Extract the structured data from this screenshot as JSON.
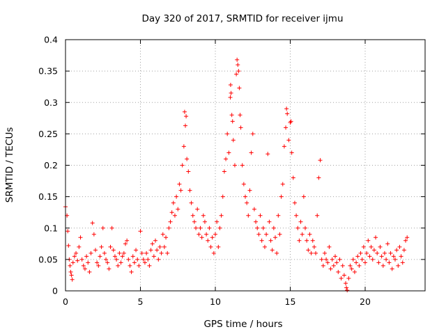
{
  "chart_data": {
    "type": "scatter",
    "title": "Day 320 of 2017, SRMTID for receiver ijmu",
    "xlabel": "GPS time / hours",
    "ylabel": "SRMTID / TECUs",
    "xlim": [
      0,
      24
    ],
    "ylim": [
      0,
      0.4
    ],
    "xticks": [
      0,
      5,
      10,
      15,
      20
    ],
    "xtick_labels": [
      "0",
      "5",
      "10",
      "15",
      "20"
    ],
    "yticks": [
      0,
      0.05,
      0.1,
      0.15,
      0.2,
      0.25,
      0.3,
      0.35,
      0.4
    ],
    "ytick_labels": [
      "0",
      "0.05",
      "0.1",
      "0.15",
      "0.2",
      "0.25",
      "0.3",
      "0.35",
      "0.4"
    ],
    "grid": true,
    "marker": "+",
    "marker_color": "#ff0000",
    "series": [
      {
        "name": "SRMTID",
        "points": [
          [
            0.0,
            0.134
          ],
          [
            0.1,
            0.12
          ],
          [
            0.15,
            0.095
          ],
          [
            0.2,
            0.072
          ],
          [
            0.25,
            0.05
          ],
          [
            0.3,
            0.04
          ],
          [
            0.35,
            0.03
          ],
          [
            0.4,
            0.025
          ],
          [
            0.45,
            0.018
          ],
          [
            0.5,
            0.045
          ],
          [
            0.6,
            0.055
          ],
          [
            0.7,
            0.06
          ],
          [
            0.8,
            0.048
          ],
          [
            0.9,
            0.07
          ],
          [
            1.0,
            0.085
          ],
          [
            1.1,
            0.05
          ],
          [
            1.2,
            0.04
          ],
          [
            1.3,
            0.035
          ],
          [
            1.4,
            0.055
          ],
          [
            1.5,
            0.045
          ],
          [
            1.6,
            0.03
          ],
          [
            1.7,
            0.06
          ],
          [
            1.8,
            0.108
          ],
          [
            1.9,
            0.09
          ],
          [
            2.0,
            0.065
          ],
          [
            2.1,
            0.045
          ],
          [
            2.2,
            0.04
          ],
          [
            2.3,
            0.055
          ],
          [
            2.4,
            0.07
          ],
          [
            2.5,
            0.1
          ],
          [
            2.6,
            0.06
          ],
          [
            2.7,
            0.05
          ],
          [
            2.8,
            0.045
          ],
          [
            2.9,
            0.035
          ],
          [
            3.0,
            0.07
          ],
          [
            3.1,
            0.1
          ],
          [
            3.2,
            0.065
          ],
          [
            3.3,
            0.055
          ],
          [
            3.4,
            0.05
          ],
          [
            3.5,
            0.04
          ],
          [
            3.6,
            0.06
          ],
          [
            3.7,
            0.045
          ],
          [
            3.8,
            0.055
          ],
          [
            3.9,
            0.06
          ],
          [
            4.0,
            0.075
          ],
          [
            4.1,
            0.08
          ],
          [
            4.2,
            0.05
          ],
          [
            4.3,
            0.04
          ],
          [
            4.4,
            0.03
          ],
          [
            4.5,
            0.055
          ],
          [
            4.6,
            0.045
          ],
          [
            4.7,
            0.065
          ],
          [
            4.8,
            0.05
          ],
          [
            4.9,
            0.04
          ],
          [
            5.0,
            0.095
          ],
          [
            5.1,
            0.06
          ],
          [
            5.2,
            0.05
          ],
          [
            5.3,
            0.045
          ],
          [
            5.4,
            0.06
          ],
          [
            5.5,
            0.05
          ],
          [
            5.6,
            0.04
          ],
          [
            5.7,
            0.065
          ],
          [
            5.8,
            0.075
          ],
          [
            5.9,
            0.055
          ],
          [
            6.0,
            0.08
          ],
          [
            6.1,
            0.065
          ],
          [
            6.2,
            0.05
          ],
          [
            6.3,
            0.07
          ],
          [
            6.4,
            0.06
          ],
          [
            6.5,
            0.09
          ],
          [
            6.6,
            0.07
          ],
          [
            6.7,
            0.085
          ],
          [
            6.8,
            0.06
          ],
          [
            6.9,
            0.1
          ],
          [
            7.0,
            0.11
          ],
          [
            7.1,
            0.125
          ],
          [
            7.2,
            0.14
          ],
          [
            7.3,
            0.12
          ],
          [
            7.4,
            0.15
          ],
          [
            7.5,
            0.13
          ],
          [
            7.6,
            0.17
          ],
          [
            7.7,
            0.16
          ],
          [
            7.8,
            0.2
          ],
          [
            7.9,
            0.23
          ],
          [
            7.95,
            0.285
          ],
          [
            8.0,
            0.263
          ],
          [
            8.05,
            0.278
          ],
          [
            8.1,
            0.21
          ],
          [
            8.2,
            0.19
          ],
          [
            8.3,
            0.16
          ],
          [
            8.4,
            0.14
          ],
          [
            8.5,
            0.12
          ],
          [
            8.6,
            0.11
          ],
          [
            8.7,
            0.1
          ],
          [
            8.8,
            0.13
          ],
          [
            8.9,
            0.09
          ],
          [
            9.0,
            0.1
          ],
          [
            9.1,
            0.085
          ],
          [
            9.2,
            0.12
          ],
          [
            9.3,
            0.11
          ],
          [
            9.4,
            0.09
          ],
          [
            9.5,
            0.08
          ],
          [
            9.6,
            0.1
          ],
          [
            9.7,
            0.07
          ],
          [
            9.8,
            0.085
          ],
          [
            9.9,
            0.06
          ],
          [
            10.0,
            0.09
          ],
          [
            10.1,
            0.11
          ],
          [
            10.2,
            0.07
          ],
          [
            10.3,
            0.1
          ],
          [
            10.4,
            0.12
          ],
          [
            10.5,
            0.15
          ],
          [
            10.6,
            0.19
          ],
          [
            10.7,
            0.21
          ],
          [
            10.8,
            0.25
          ],
          [
            10.9,
            0.22
          ],
          [
            11.0,
            0.308
          ],
          [
            11.02,
            0.328
          ],
          [
            11.05,
            0.315
          ],
          [
            11.1,
            0.28
          ],
          [
            11.15,
            0.27
          ],
          [
            11.2,
            0.24
          ],
          [
            11.3,
            0.2
          ],
          [
            11.4,
            0.345
          ],
          [
            11.45,
            0.368
          ],
          [
            11.5,
            0.36
          ],
          [
            11.55,
            0.35
          ],
          [
            11.6,
            0.323
          ],
          [
            11.65,
            0.28
          ],
          [
            11.7,
            0.26
          ],
          [
            11.8,
            0.2
          ],
          [
            11.9,
            0.17
          ],
          [
            12.0,
            0.15
          ],
          [
            12.1,
            0.14
          ],
          [
            12.2,
            0.12
          ],
          [
            12.3,
            0.16
          ],
          [
            12.4,
            0.22
          ],
          [
            12.5,
            0.25
          ],
          [
            12.6,
            0.13
          ],
          [
            12.7,
            0.11
          ],
          [
            12.8,
            0.1
          ],
          [
            12.9,
            0.09
          ],
          [
            13.0,
            0.12
          ],
          [
            13.1,
            0.08
          ],
          [
            13.2,
            0.1
          ],
          [
            13.3,
            0.07
          ],
          [
            13.4,
            0.09
          ],
          [
            13.5,
            0.218
          ],
          [
            13.6,
            0.11
          ],
          [
            13.7,
            0.08
          ],
          [
            13.8,
            0.065
          ],
          [
            13.9,
            0.1
          ],
          [
            14.0,
            0.085
          ],
          [
            14.1,
            0.06
          ],
          [
            14.2,
            0.12
          ],
          [
            14.3,
            0.09
          ],
          [
            14.4,
            0.15
          ],
          [
            14.5,
            0.17
          ],
          [
            14.6,
            0.23
          ],
          [
            14.7,
            0.26
          ],
          [
            14.75,
            0.29
          ],
          [
            14.8,
            0.282
          ],
          [
            14.9,
            0.24
          ],
          [
            15.0,
            0.268
          ],
          [
            15.05,
            0.27
          ],
          [
            15.1,
            0.22
          ],
          [
            15.2,
            0.18
          ],
          [
            15.3,
            0.14
          ],
          [
            15.4,
            0.12
          ],
          [
            15.5,
            0.1
          ],
          [
            15.6,
            0.08
          ],
          [
            15.7,
            0.11
          ],
          [
            15.8,
            0.09
          ],
          [
            15.9,
            0.15
          ],
          [
            16.0,
            0.1
          ],
          [
            16.1,
            0.08
          ],
          [
            16.2,
            0.065
          ],
          [
            16.3,
            0.09
          ],
          [
            16.4,
            0.06
          ],
          [
            16.5,
            0.08
          ],
          [
            16.6,
            0.07
          ],
          [
            16.7,
            0.06
          ],
          [
            16.8,
            0.12
          ],
          [
            16.9,
            0.18
          ],
          [
            17.0,
            0.208
          ],
          [
            17.1,
            0.05
          ],
          [
            17.2,
            0.04
          ],
          [
            17.3,
            0.06
          ],
          [
            17.4,
            0.05
          ],
          [
            17.5,
            0.045
          ],
          [
            17.6,
            0.07
          ],
          [
            17.7,
            0.035
          ],
          [
            17.8,
            0.05
          ],
          [
            17.9,
            0.04
          ],
          [
            18.0,
            0.055
          ],
          [
            18.1,
            0.045
          ],
          [
            18.2,
            0.03
          ],
          [
            18.3,
            0.05
          ],
          [
            18.4,
            0.02
          ],
          [
            18.5,
            0.04
          ],
          [
            18.6,
            0.025
          ],
          [
            18.7,
            0.012
          ],
          [
            18.75,
            0.005
          ],
          [
            18.8,
            0.001
          ],
          [
            18.9,
            0.02
          ],
          [
            19.0,
            0.04
          ],
          [
            19.1,
            0.035
          ],
          [
            19.2,
            0.05
          ],
          [
            19.3,
            0.03
          ],
          [
            19.4,
            0.045
          ],
          [
            19.5,
            0.055
          ],
          [
            19.6,
            0.04
          ],
          [
            19.7,
            0.06
          ],
          [
            19.8,
            0.05
          ],
          [
            19.9,
            0.07
          ],
          [
            20.0,
            0.045
          ],
          [
            20.1,
            0.06
          ],
          [
            20.2,
            0.08
          ],
          [
            20.3,
            0.055
          ],
          [
            20.4,
            0.07
          ],
          [
            20.5,
            0.05
          ],
          [
            20.6,
            0.065
          ],
          [
            20.7,
            0.085
          ],
          [
            20.8,
            0.06
          ],
          [
            20.9,
            0.045
          ],
          [
            21.0,
            0.07
          ],
          [
            21.1,
            0.055
          ],
          [
            21.2,
            0.04
          ],
          [
            21.3,
            0.06
          ],
          [
            21.4,
            0.05
          ],
          [
            21.5,
            0.075
          ],
          [
            21.6,
            0.045
          ],
          [
            21.7,
            0.06
          ],
          [
            21.8,
            0.035
          ],
          [
            21.9,
            0.055
          ],
          [
            22.0,
            0.05
          ],
          [
            22.1,
            0.065
          ],
          [
            22.2,
            0.04
          ],
          [
            22.3,
            0.07
          ],
          [
            22.4,
            0.055
          ],
          [
            22.5,
            0.045
          ],
          [
            22.6,
            0.065
          ],
          [
            22.7,
            0.08
          ],
          [
            22.8,
            0.085
          ]
        ]
      }
    ]
  }
}
